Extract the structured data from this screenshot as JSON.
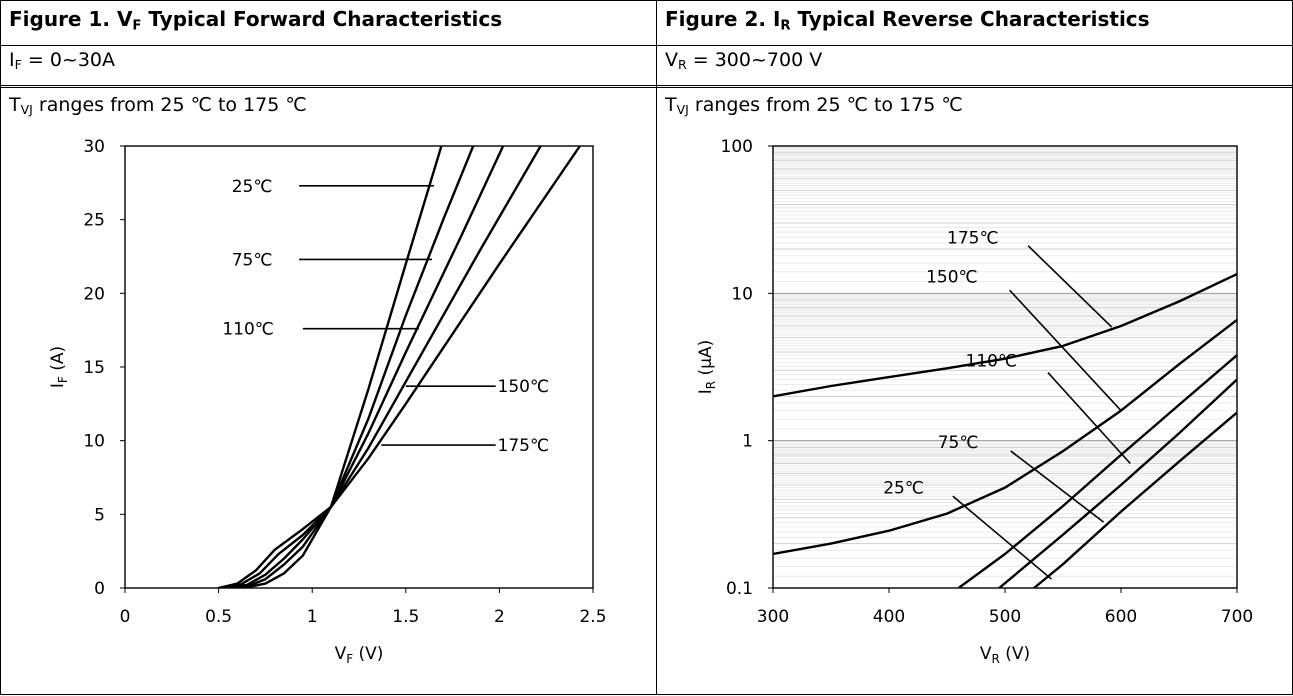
{
  "figures": [
    {
      "title_pre": "Figure 1. V",
      "title_sub": "F",
      "title_post": " Typical Forward Characteristics",
      "cond_pre": "I",
      "cond_sub": "F",
      "cond_post": " = 0~30A",
      "range_pre": "T",
      "range_sub": "VJ",
      "range_post": " ranges from 25 ℃ to 175 ℃"
    },
    {
      "title_pre": "Figure 2. I",
      "title_sub": "R",
      "title_post": " Typical Reverse Characteristics",
      "cond_pre": "V",
      "cond_sub": "R",
      "cond_post": " = 300~700 V",
      "range_pre": "T",
      "range_sub": "VJ",
      "range_post": " ranges from 25 ℃  to 175 ℃"
    }
  ],
  "chart_data": [
    {
      "type": "line",
      "xlabel_pre": "V",
      "xlabel_sub": "F",
      "xlabel_post": " (V)",
      "ylabel_pre": "I",
      "ylabel_sub": "F",
      "ylabel_post": " (A)",
      "xlim": [
        0,
        2.5
      ],
      "ylim": [
        0,
        30
      ],
      "xticks": [
        0,
        0.5,
        1,
        1.5,
        2,
        2.5
      ],
      "xtick_labels": [
        "0",
        "0.5",
        "1",
        "1.5",
        "2",
        "2.5"
      ],
      "yticks": [
        0,
        5,
        10,
        15,
        20,
        25,
        30
      ],
      "ytick_labels": [
        "0",
        "5",
        "10",
        "15",
        "20",
        "25",
        "30"
      ],
      "grid": false,
      "series": [
        {
          "name": "25℃",
          "x": [
            0.5,
            0.65,
            0.75,
            0.85,
            0.95,
            1.1,
            1.3,
            1.5,
            1.69
          ],
          "y": [
            0,
            0.05,
            0.3,
            1.0,
            2.2,
            5.5,
            13.5,
            22.0,
            30
          ]
        },
        {
          "name": "75℃",
          "x": [
            0.5,
            0.65,
            0.75,
            0.85,
            0.95,
            1.1,
            1.3,
            1.5,
            1.7,
            1.86
          ],
          "y": [
            0,
            0.1,
            0.6,
            1.6,
            2.8,
            5.5,
            11.5,
            18.5,
            25.0,
            30
          ]
        },
        {
          "name": "110℃",
          "x": [
            0.5,
            0.65,
            0.75,
            0.85,
            0.95,
            1.1,
            1.3,
            1.5,
            1.8,
            2.02
          ],
          "y": [
            0,
            0.2,
            0.9,
            2.0,
            3.3,
            5.5,
            10.5,
            16.0,
            24.0,
            30
          ]
        },
        {
          "name": "150℃",
          "x": [
            0.5,
            0.62,
            0.72,
            0.82,
            0.95,
            1.1,
            1.3,
            1.5,
            1.9,
            2.22
          ],
          "y": [
            0,
            0.25,
            1.0,
            2.3,
            3.6,
            5.5,
            9.5,
            14.0,
            23.0,
            30
          ]
        },
        {
          "name": "175℃",
          "x": [
            0.5,
            0.6,
            0.7,
            0.8,
            0.95,
            1.1,
            1.3,
            1.5,
            2.0,
            2.43
          ],
          "y": [
            0,
            0.3,
            1.2,
            2.6,
            4.0,
            5.5,
            8.8,
            12.5,
            22.0,
            30
          ]
        }
      ],
      "annotations": [
        {
          "text": "25℃",
          "label_x": 0.57,
          "label_y": 27.3,
          "line_from": [
            0.93,
            27.3
          ],
          "line_to": [
            1.65,
            27.3
          ]
        },
        {
          "text": "75℃",
          "label_x": 0.57,
          "label_y": 22.3,
          "line_from": [
            0.93,
            22.3
          ],
          "line_to": [
            1.64,
            22.3
          ]
        },
        {
          "text": "110℃",
          "label_x": 0.52,
          "label_y": 17.6,
          "line_from": [
            0.95,
            17.6
          ],
          "line_to": [
            1.57,
            17.6
          ]
        },
        {
          "text": "150℃",
          "label_x": 1.99,
          "label_y": 13.7,
          "line_from": [
            1.5,
            13.7
          ],
          "line_to": [
            1.98,
            13.7
          ]
        },
        {
          "text": "175℃",
          "label_x": 1.99,
          "label_y": 9.7,
          "line_from": [
            1.37,
            9.7
          ],
          "line_to": [
            1.98,
            9.7
          ]
        }
      ]
    },
    {
      "type": "line",
      "xlabel_pre": "V",
      "xlabel_sub": "R",
      "xlabel_post": " (V)",
      "ylabel_pre": "I",
      "ylabel_sub": "R",
      "ylabel_post": " (μA)",
      "xlim": [
        300,
        700
      ],
      "ylim": [
        0.1,
        100
      ],
      "yscale": "log",
      "xticks": [
        300,
        400,
        500,
        600,
        700
      ],
      "xtick_labels": [
        "300",
        "400",
        "500",
        "600",
        "700"
      ],
      "yticks": [
        0.1,
        1,
        10,
        100
      ],
      "ytick_labels": [
        "0.1",
        "1",
        "10",
        "100"
      ],
      "grid": true,
      "series": [
        {
          "name": "175℃",
          "x": [
            300,
            350,
            400,
            450,
            500,
            550,
            600,
            650,
            700
          ],
          "y": [
            2.0,
            2.35,
            2.7,
            3.1,
            3.6,
            4.4,
            6.0,
            8.8,
            13.5
          ]
        },
        {
          "name": "150℃",
          "x": [
            300,
            350,
            400,
            450,
            500,
            550,
            600,
            650,
            700
          ],
          "y": [
            0.17,
            0.2,
            0.245,
            0.32,
            0.48,
            0.85,
            1.6,
            3.3,
            6.6
          ]
        },
        {
          "name": "110℃",
          "x": [
            460,
            500,
            550,
            600,
            650,
            700
          ],
          "y": [
            0.1,
            0.17,
            0.36,
            0.8,
            1.75,
            3.8
          ]
        },
        {
          "name": "75℃",
          "x": [
            495,
            550,
            600,
            650,
            700
          ],
          "y": [
            0.1,
            0.23,
            0.5,
            1.12,
            2.6
          ]
        },
        {
          "name": "25℃",
          "x": [
            525,
            550,
            600,
            650,
            700
          ],
          "y": [
            0.1,
            0.145,
            0.33,
            0.72,
            1.55
          ]
        }
      ],
      "annotations": [
        {
          "text": "175℃",
          "label_x": 450,
          "label_y": 24,
          "line_from": [
            520,
            21
          ],
          "line_to": [
            592,
            5.9
          ]
        },
        {
          "text": "150℃",
          "label_x": 432,
          "label_y": 13,
          "line_from": [
            504,
            10.5
          ],
          "line_to": [
            600,
            1.6
          ]
        },
        {
          "text": "110℃",
          "label_x": 466,
          "label_y": 3.5,
          "line_from": [
            537,
            2.9
          ],
          "line_to": [
            608,
            0.7
          ]
        },
        {
          "text": "75℃",
          "label_x": 442,
          "label_y": 0.98,
          "line_from": [
            505,
            0.85
          ],
          "line_to": [
            585,
            0.28
          ]
        },
        {
          "text": "25℃",
          "label_x": 395,
          "label_y": 0.48,
          "line_from": [
            455,
            0.42
          ],
          "line_to": [
            540,
            0.115
          ]
        }
      ]
    }
  ]
}
